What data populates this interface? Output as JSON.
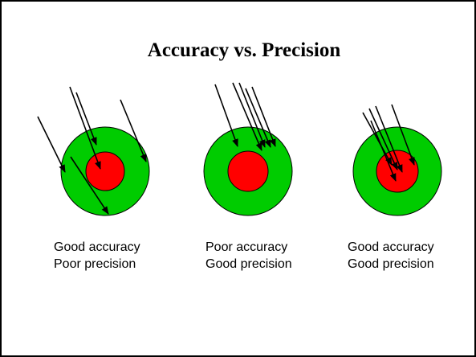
{
  "title": "Accuracy vs. Precision",
  "panels": [
    {
      "lines": [
        "Good accuracy",
        "Poor precision"
      ]
    },
    {
      "lines": [
        "Poor accuracy",
        "Good precision"
      ]
    },
    {
      "lines": [
        "Good accuracy",
        "Good precision"
      ]
    }
  ]
}
